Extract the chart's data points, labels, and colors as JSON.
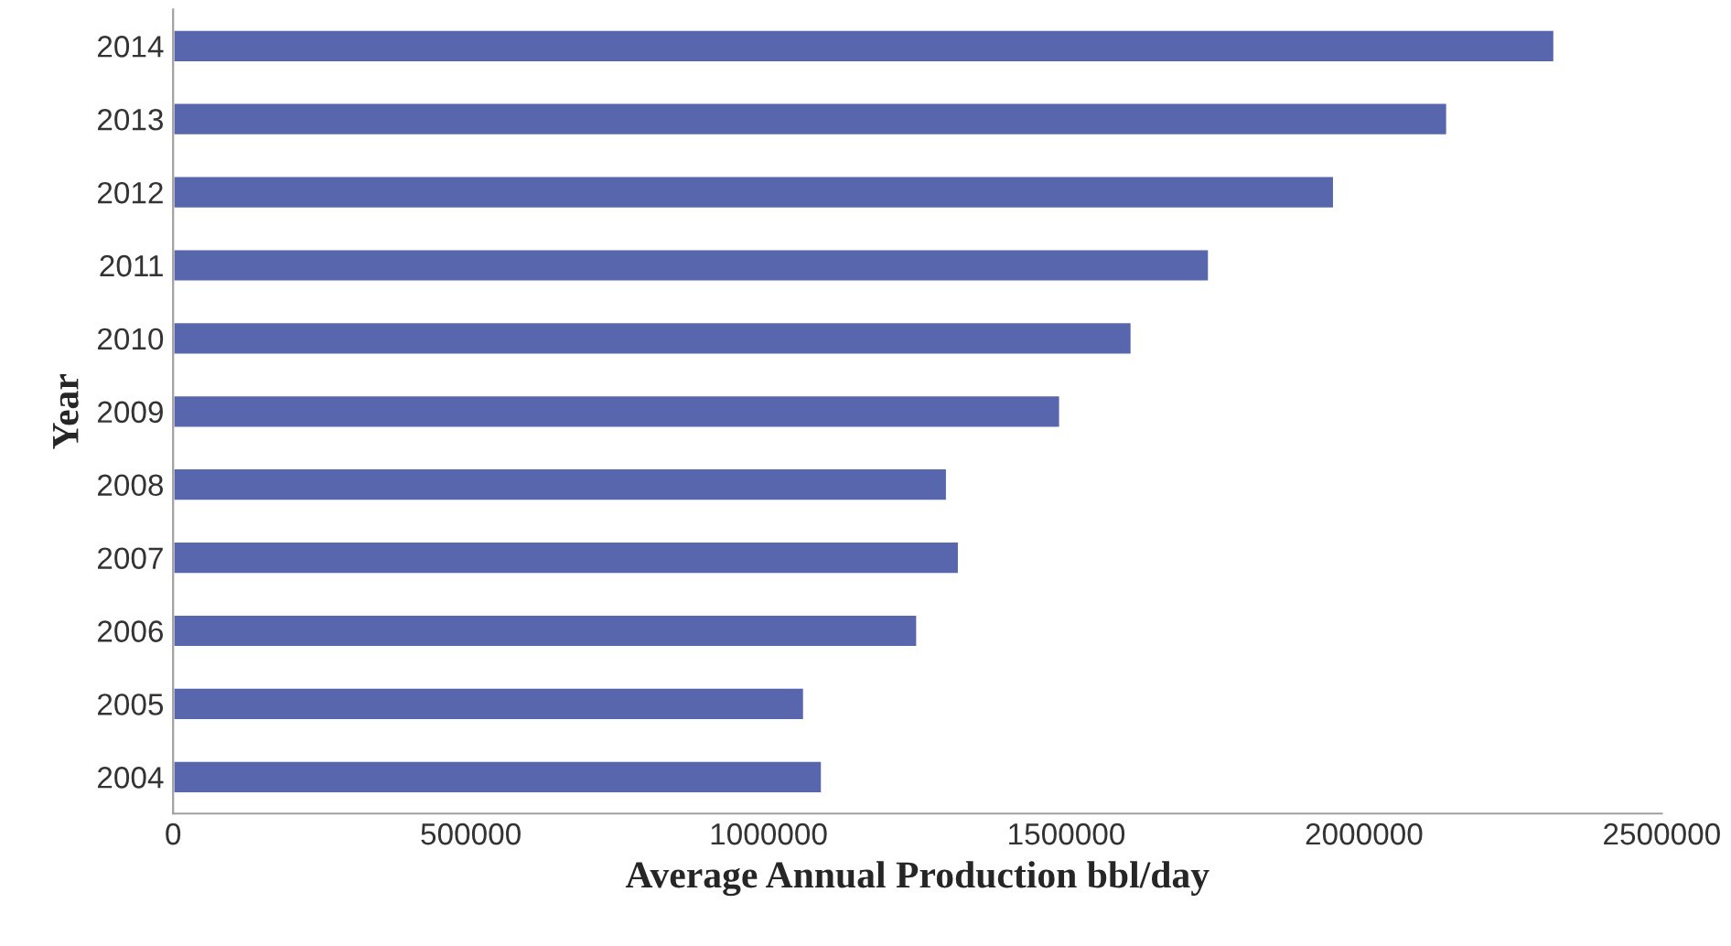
{
  "chart_data": {
    "type": "bar",
    "orientation": "horizontal",
    "xlabel": "Average Annual Production bbl/day",
    "ylabel": "Year",
    "categories": [
      "2014",
      "2013",
      "2012",
      "2011",
      "2010",
      "2009",
      "2008",
      "2007",
      "2006",
      "2005",
      "2004"
    ],
    "values": [
      2320000,
      2140000,
      1950000,
      1740000,
      1610000,
      1490000,
      1300000,
      1320000,
      1250000,
      1060000,
      1090000
    ],
    "color": "#5766ad",
    "xlim": [
      0,
      2500000
    ],
    "xticks": [
      0,
      500000,
      1000000,
      1500000,
      2000000,
      2500000
    ],
    "grid": false,
    "legend": false
  }
}
